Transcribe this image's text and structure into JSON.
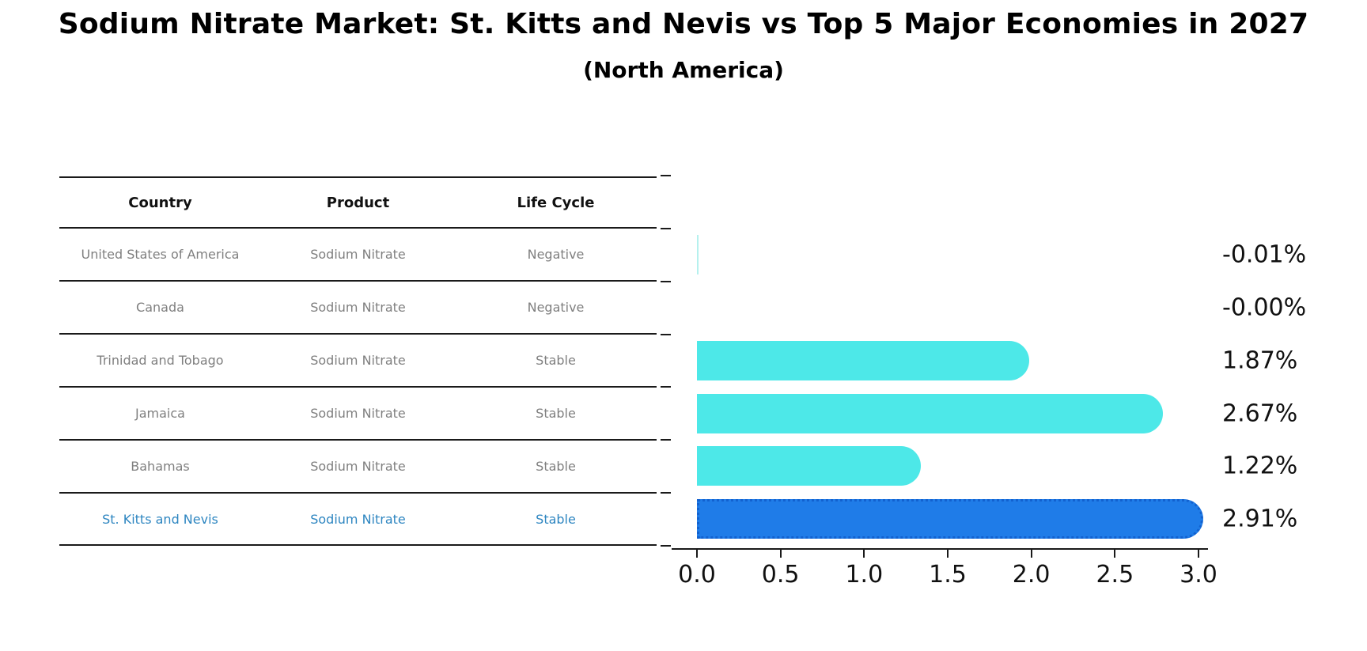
{
  "title": "Sodium Nitrate Market: St. Kitts and Nevis vs Top 5 Major Economies in 2027",
  "subtitle": "(North America)",
  "table": {
    "headers": [
      "Country",
      "Product",
      "Life Cycle"
    ],
    "rows": [
      {
        "country": "United States of America",
        "product": "Sodium Nitrate",
        "life_cycle": "Negative"
      },
      {
        "country": "Canada",
        "product": "Sodium Nitrate",
        "life_cycle": "Negative"
      },
      {
        "country": "Trinidad and Tobago",
        "product": "Sodium Nitrate",
        "life_cycle": "Stable"
      },
      {
        "country": "Jamaica",
        "product": "Sodium Nitrate",
        "life_cycle": "Stable"
      },
      {
        "country": "Bahamas",
        "product": "Sodium Nitrate",
        "life_cycle": "Stable"
      },
      {
        "country": "St. Kitts and Nevis",
        "product": "Sodium Nitrate",
        "life_cycle": "Stable"
      }
    ],
    "highlight_row_index": 5
  },
  "chart_data": {
    "type": "bar",
    "orientation": "horizontal",
    "title": "Sodium Nitrate Market: St. Kitts and Nevis vs Top 5 Major Economies in 2027 (North America)",
    "categories": [
      "United States of America",
      "Canada",
      "Trinidad and Tobago",
      "Jamaica",
      "Bahamas",
      "St. Kitts and Nevis"
    ],
    "values": [
      -0.01,
      -0.0,
      1.87,
      2.67,
      1.22,
      2.91
    ],
    "value_labels": [
      "-0.01%",
      "-0.00%",
      "1.87%",
      "2.67%",
      "1.22%",
      "2.91%"
    ],
    "x_ticks": [
      "0.0",
      "0.5",
      "1.0",
      "1.5",
      "2.0",
      "2.5",
      "3.0"
    ],
    "xlim": [
      0.0,
      3.0
    ],
    "xlabel": "",
    "ylabel": "",
    "grid": false,
    "legend": false,
    "highlight_index": 5
  },
  "colors": {
    "bar": "#4DE8E8",
    "bar_negative": "#B5F1EE",
    "highlight_bar": "#1F7CE8",
    "highlight_border": "#1261CF",
    "highlight_text": "#2E86C1",
    "table_text": "#7F7F7F",
    "header_text": "#111111",
    "axis": "#1A1A1A",
    "label_text": "#111111"
  }
}
